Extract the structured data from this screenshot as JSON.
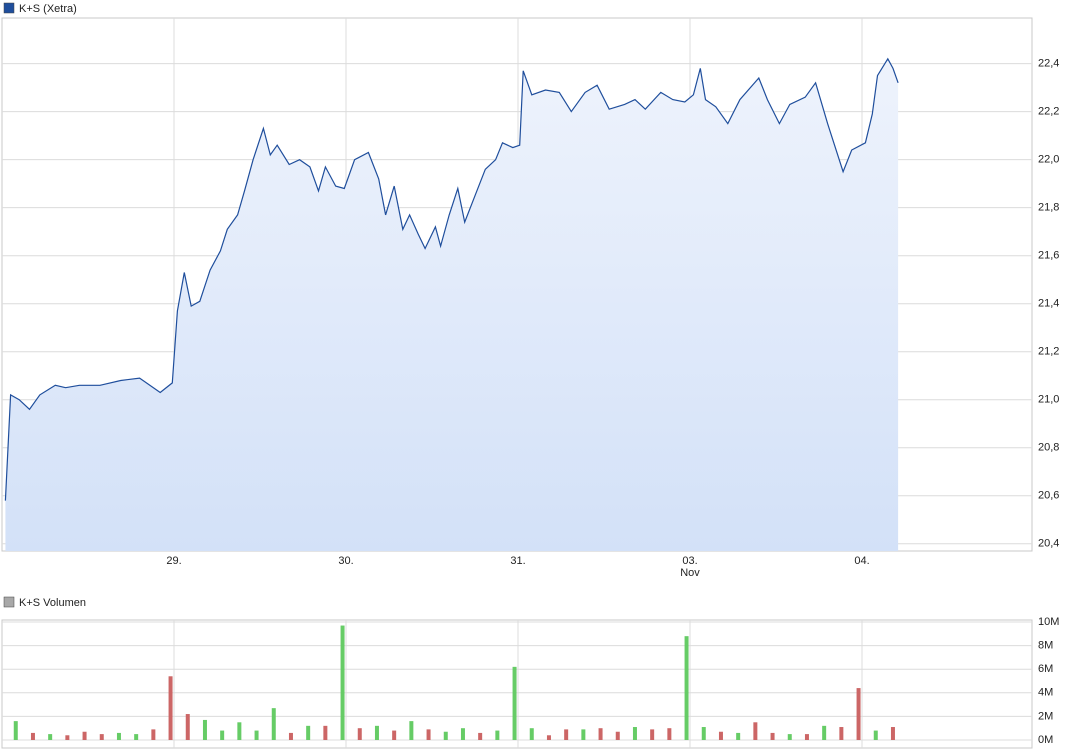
{
  "chart_data": [
    {
      "type": "area",
      "series": [
        {
          "name": "K+S (Xetra)",
          "color": "#1f4e9c",
          "x": [
            0.02,
            0.05,
            0.1,
            0.16,
            0.22,
            0.31,
            0.37,
            0.45,
            0.57,
            0.69,
            0.8,
            0.92,
            0.99,
            1.02,
            1.06,
            1.1,
            1.15,
            1.21,
            1.27,
            1.31,
            1.37,
            1.41,
            1.46,
            1.52,
            1.56,
            1.6,
            1.67,
            1.73,
            1.79,
            1.84,
            1.88,
            1.94,
            1.99,
            2.05,
            2.13,
            2.19,
            2.23,
            2.28,
            2.33,
            2.37,
            2.42,
            2.46,
            2.52,
            2.55,
            2.6,
            2.65,
            2.69,
            2.75,
            2.81,
            2.87,
            2.91,
            2.97,
            3.01,
            3.03,
            3.08,
            3.16,
            3.24,
            3.31,
            3.39,
            3.46,
            3.53,
            3.62,
            3.68,
            3.74,
            3.83,
            3.9,
            3.97,
            4.02,
            4.06,
            4.09,
            4.15,
            4.22,
            4.29,
            4.4,
            4.45,
            4.52,
            4.58,
            4.67,
            4.73,
            4.8,
            4.89,
            4.94,
            5.02,
            5.06,
            5.09,
            5.15,
            5.18,
            5.21
          ],
          "values": [
            20.58,
            21.02,
            21.0,
            20.96,
            21.02,
            21.06,
            21.05,
            21.06,
            21.06,
            21.08,
            21.09,
            21.03,
            21.07,
            21.37,
            21.53,
            21.39,
            21.41,
            21.54,
            21.62,
            21.71,
            21.77,
            21.87,
            22.0,
            22.13,
            22.02,
            22.06,
            21.98,
            22.0,
            21.97,
            21.87,
            21.97,
            21.89,
            21.88,
            22.0,
            22.03,
            21.92,
            21.77,
            21.89,
            21.71,
            21.77,
            21.69,
            21.63,
            21.72,
            21.64,
            21.77,
            21.88,
            21.74,
            21.85,
            21.96,
            22.0,
            22.07,
            22.05,
            22.06,
            22.37,
            22.27,
            22.29,
            22.28,
            22.2,
            22.28,
            22.31,
            22.21,
            22.23,
            22.25,
            22.21,
            22.28,
            22.25,
            22.24,
            22.27,
            22.38,
            22.25,
            22.22,
            22.15,
            22.25,
            22.34,
            22.25,
            22.15,
            22.23,
            22.26,
            22.32,
            22.15,
            21.95,
            22.04,
            22.07,
            22.19,
            22.35,
            22.42,
            22.38,
            22.32
          ]
        }
      ],
      "fill_top": "#eef3fc",
      "fill_bottom": "#d3e1f8",
      "xlim": [
        0,
        6
      ],
      "xticks": [
        {
          "value": 1,
          "label": "29."
        },
        {
          "value": 2,
          "label": "30."
        },
        {
          "value": 3,
          "label": "31."
        },
        {
          "value": 4,
          "label": "03."
        },
        {
          "value": 5,
          "label": "04."
        }
      ],
      "x_annotation": "Nov",
      "ylim": [
        20.37,
        22.59
      ],
      "yticks": [
        {
          "value": 20.4,
          "label": "20,4"
        },
        {
          "value": 20.6,
          "label": "20,6"
        },
        {
          "value": 20.8,
          "label": "20,8"
        },
        {
          "value": 21.0,
          "label": "21,0"
        },
        {
          "value": 21.2,
          "label": "21,2"
        },
        {
          "value": 21.4,
          "label": "21,4"
        },
        {
          "value": 21.6,
          "label": "21,6"
        },
        {
          "value": 21.8,
          "label": "21,8"
        },
        {
          "value": 22.0,
          "label": "22,0"
        },
        {
          "value": 22.2,
          "label": "22,2"
        },
        {
          "value": 22.4,
          "label": "22,4"
        }
      ],
      "grid": true
    },
    {
      "type": "bar",
      "series": [
        {
          "name": "K+S Volumen",
          "color": "#a8a8a8",
          "x": [
            0.08,
            0.18,
            0.28,
            0.38,
            0.48,
            0.58,
            0.68,
            0.78,
            0.88,
            0.98,
            1.08,
            1.18,
            1.28,
            1.38,
            1.48,
            1.58,
            1.68,
            1.78,
            1.88,
            1.98,
            2.08,
            2.18,
            2.28,
            2.38,
            2.48,
            2.58,
            2.68,
            2.78,
            2.88,
            2.98,
            3.08,
            3.18,
            3.28,
            3.38,
            3.48,
            3.58,
            3.68,
            3.78,
            3.88,
            3.98,
            4.08,
            4.18,
            4.28,
            4.38,
            4.48,
            4.58,
            4.68,
            4.78,
            4.88,
            4.98,
            5.08,
            5.18
          ],
          "values": [
            1.6,
            0.6,
            0.5,
            0.4,
            0.7,
            0.5,
            0.6,
            0.5,
            0.9,
            5.4,
            2.2,
            1.7,
            0.8,
            1.5,
            0.8,
            2.7,
            0.6,
            1.2,
            1.2,
            9.7,
            1.0,
            1.2,
            0.8,
            1.6,
            0.9,
            0.7,
            1.0,
            0.6,
            0.8,
            6.2,
            1.0,
            0.4,
            0.9,
            0.9,
            1.0,
            0.7,
            1.1,
            0.9,
            1.0,
            8.8,
            1.1,
            0.7,
            0.6,
            1.5,
            0.6,
            0.5,
            0.5,
            1.2,
            1.1,
            4.4,
            0.8,
            1.1
          ],
          "colors": [
            "#66cc66",
            "#cc6666",
            "#66cc66",
            "#cc6666",
            "#cc6666",
            "#cc6666",
            "#66cc66",
            "#66cc66",
            "#cc6666",
            "#cc6666",
            "#cc6666",
            "#66cc66",
            "#66cc66",
            "#66cc66",
            "#66cc66",
            "#66cc66",
            "#cc6666",
            "#66cc66",
            "#cc6666",
            "#66cc66",
            "#cc6666",
            "#66cc66",
            "#cc6666",
            "#66cc66",
            "#cc6666",
            "#66cc66",
            "#66cc66",
            "#cc6666",
            "#66cc66",
            "#66cc66",
            "#66cc66",
            "#cc6666",
            "#cc6666",
            "#66cc66",
            "#cc6666",
            "#cc6666",
            "#66cc66",
            "#cc6666",
            "#cc6666",
            "#66cc66",
            "#66cc66",
            "#cc6666",
            "#66cc66",
            "#cc6666",
            "#cc6666",
            "#66cc66",
            "#cc6666",
            "#66cc66",
            "#cc6666",
            "#cc6666",
            "#66cc66",
            "#cc6666"
          ]
        }
      ],
      "xlim": [
        0,
        6
      ],
      "ylim": [
        0,
        10.17
      ],
      "yticks": [
        {
          "value": 0,
          "label": "0M"
        },
        {
          "value": 2,
          "label": "2M"
        },
        {
          "value": 4,
          "label": "4M"
        },
        {
          "value": 6,
          "label": "6M"
        },
        {
          "value": 8,
          "label": "8M"
        },
        {
          "value": 10,
          "label": "10M"
        }
      ],
      "grid": true
    }
  ]
}
